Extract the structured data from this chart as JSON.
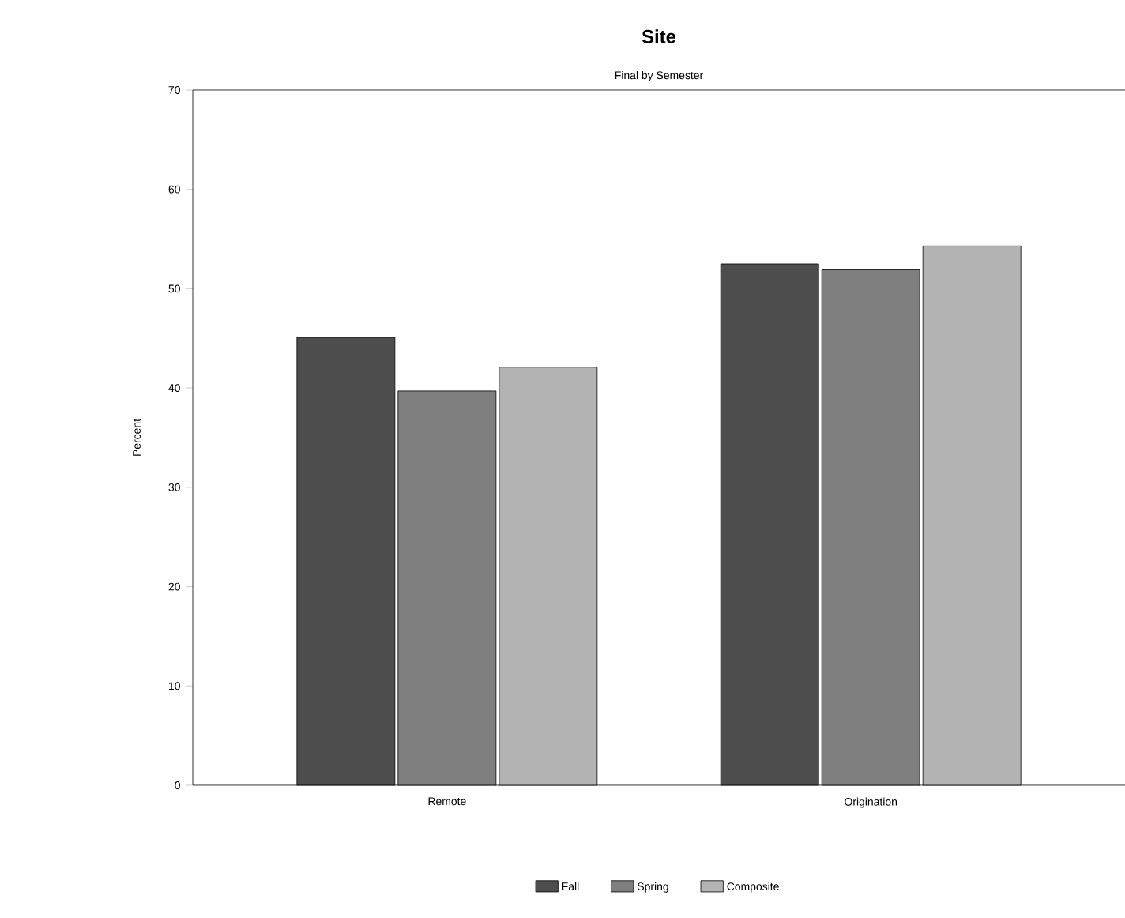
{
  "chart_data": {
    "type": "bar",
    "title": "Site",
    "subtitle": "Final by Semester",
    "ylabel": "Percent",
    "categories": [
      "Remote",
      "Origination"
    ],
    "series": [
      {
        "name": "Fall",
        "color": "#4d4d4d",
        "values": [
          45.1,
          52.5
        ]
      },
      {
        "name": "Spring",
        "color": "#7f7f7f",
        "values": [
          39.7,
          51.9
        ]
      },
      {
        "name": "Composite",
        "color": "#b3b3b3",
        "values": [
          42.1,
          54.3
        ]
      }
    ],
    "ylim": [
      0,
      70
    ],
    "yticks": [
      0,
      10,
      20,
      30,
      40,
      50,
      60,
      70
    ],
    "grid": false,
    "legend": "bottom"
  }
}
